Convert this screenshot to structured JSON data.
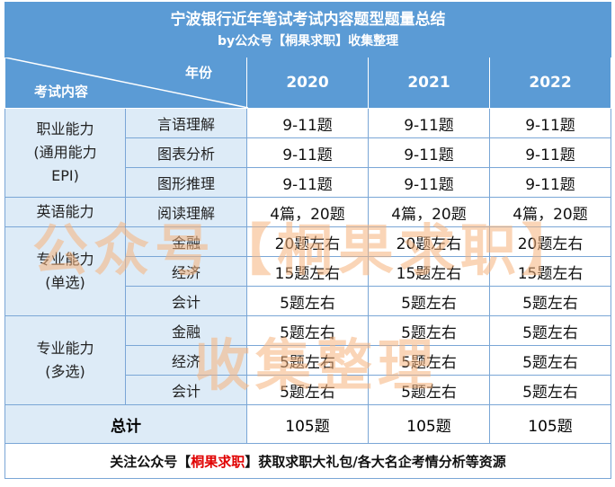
{
  "title": "宁波银行近年笔试考试内容题型题量总结",
  "subtitle": "by公众号【桐果求职】收集整理",
  "header": {
    "diagonal_top": "年份",
    "diagonal_bottom": "考试内容",
    "years": [
      "2020",
      "2021",
      "2022"
    ]
  },
  "groups": [
    {
      "category": "职业能力\n(通用能力\nEPI)",
      "rows": [
        {
          "sub": "言语理解",
          "values": [
            "9-11题",
            "9-11题",
            "9-11题"
          ]
        },
        {
          "sub": "图表分析",
          "values": [
            "9-11题",
            "9-11题",
            "9-11题"
          ]
        },
        {
          "sub": "图形推理",
          "values": [
            "9-11题",
            "9-11题",
            "9-11题"
          ]
        }
      ]
    },
    {
      "category": "英语能力",
      "rows": [
        {
          "sub": "阅读理解",
          "values": [
            "4篇，20题",
            "4篇，20题",
            "4篇，20题"
          ]
        }
      ]
    },
    {
      "category": "专业能力\n(单选)",
      "rows": [
        {
          "sub": "金融",
          "values": [
            "20题左右",
            "20题左右",
            "20题左右"
          ]
        },
        {
          "sub": "经济",
          "values": [
            "15题左右",
            "15题左右",
            "15题左右"
          ]
        },
        {
          "sub": "会计",
          "values": [
            "5题左右",
            "5题左右",
            "5题左右"
          ]
        }
      ]
    },
    {
      "category": "专业能力\n(多选)",
      "rows": [
        {
          "sub": "金融",
          "values": [
            "5题左右",
            "5题左右",
            "5题左右"
          ]
        },
        {
          "sub": "经济",
          "values": [
            "5题左右",
            "5题左右",
            "5题左右"
          ]
        },
        {
          "sub": "会计",
          "values": [
            "5题左右",
            "5题左右",
            "5题左右"
          ]
        }
      ]
    }
  ],
  "total": {
    "label": "总计",
    "values": [
      "105题",
      "105题",
      "105题"
    ]
  },
  "footer": {
    "before": "关注公众号【",
    "highlight": "桐果求职",
    "after": "】获取求职大礼包/各大名企考情分析等资源"
  },
  "watermark": {
    "line1": "公众号【桐果求职】",
    "line2": "收集整理"
  },
  "colors": {
    "header_bg": "#5b9bd5",
    "label_bg": "#ddebf7",
    "border": "#7aa6d6",
    "footer_highlight": "#e00000",
    "watermark": "#f6b27b"
  }
}
